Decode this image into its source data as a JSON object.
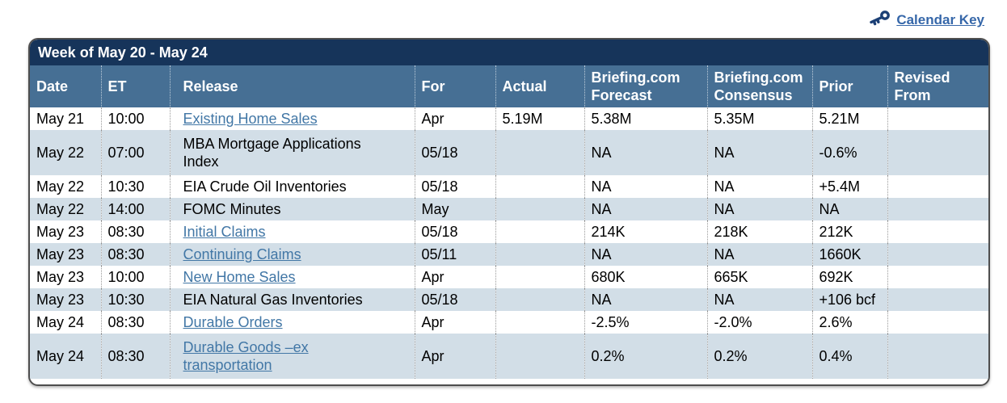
{
  "page": {
    "calendar_key_label": "Calendar Key"
  },
  "table": {
    "title": "Week of May 20 - May 24",
    "columns": {
      "date": "Date",
      "et": "ET",
      "release": "Release",
      "for": "For",
      "actual": "Actual",
      "forecast": "Briefing.com\nForecast",
      "consensus": "Briefing.com\nConsensus",
      "prior": "Prior",
      "revised": "Revised\nFrom"
    },
    "rows": [
      {
        "date": "May 21",
        "et": "10:00",
        "release": "Existing Home Sales",
        "link": true,
        "for": "Apr",
        "actual": "5.19M",
        "forecast": "5.38M",
        "consensus": "5.35M",
        "prior": "5.21M",
        "revised": ""
      },
      {
        "date": "May 22",
        "et": "07:00",
        "release": "MBA Mortgage Applications\nIndex",
        "link": false,
        "for": "05/18",
        "actual": "",
        "forecast": "NA",
        "consensus": "NA",
        "prior": "-0.6%",
        "revised": ""
      },
      {
        "date": "May 22",
        "et": "10:30",
        "release": "EIA Crude Oil Inventories",
        "link": false,
        "for": "05/18",
        "actual": "",
        "forecast": "NA",
        "consensus": "NA",
        "prior": "+5.4M",
        "revised": ""
      },
      {
        "date": "May 22",
        "et": "14:00",
        "release": "FOMC Minutes",
        "link": false,
        "for": "May",
        "actual": "",
        "forecast": "NA",
        "consensus": "NA",
        "prior": "NA",
        "revised": ""
      },
      {
        "date": "May 23",
        "et": "08:30",
        "release": "Initial Claims",
        "link": true,
        "for": "05/18",
        "actual": "",
        "forecast": "214K",
        "consensus": "218K",
        "prior": "212K",
        "revised": ""
      },
      {
        "date": "May 23",
        "et": "08:30",
        "release": "Continuing Claims",
        "link": true,
        "for": "05/11",
        "actual": "",
        "forecast": "NA",
        "consensus": "NA",
        "prior": "1660K",
        "revised": ""
      },
      {
        "date": "May 23",
        "et": "10:00",
        "release": "New Home Sales",
        "link": true,
        "for": "Apr",
        "actual": "",
        "forecast": "680K",
        "consensus": "665K",
        "prior": "692K",
        "revised": ""
      },
      {
        "date": "May 23",
        "et": "10:30",
        "release": "EIA Natural Gas Inventories",
        "link": false,
        "for": "05/18",
        "actual": "",
        "forecast": "NA",
        "consensus": "NA",
        "prior": "+106 bcf",
        "revised": ""
      },
      {
        "date": "May 24",
        "et": "08:30",
        "release": "Durable Orders",
        "link": true,
        "for": "Apr",
        "actual": "",
        "forecast": "-2.5%",
        "consensus": "-2.0%",
        "prior": "2.6%",
        "revised": ""
      },
      {
        "date": "May 24",
        "et": "08:30",
        "release": "Durable Goods –ex\ntransportation",
        "link": true,
        "for": "Apr",
        "actual": "",
        "forecast": "0.2%",
        "consensus": "0.2%",
        "prior": "0.4%",
        "revised": ""
      }
    ]
  },
  "colors": {
    "title_bar": "#16345a",
    "header_row": "#466f94",
    "alt_row": "#d2dee7",
    "link": "#4277a6",
    "calendar_key_link": "#3667a9",
    "key_icon": "#1b3f75"
  }
}
